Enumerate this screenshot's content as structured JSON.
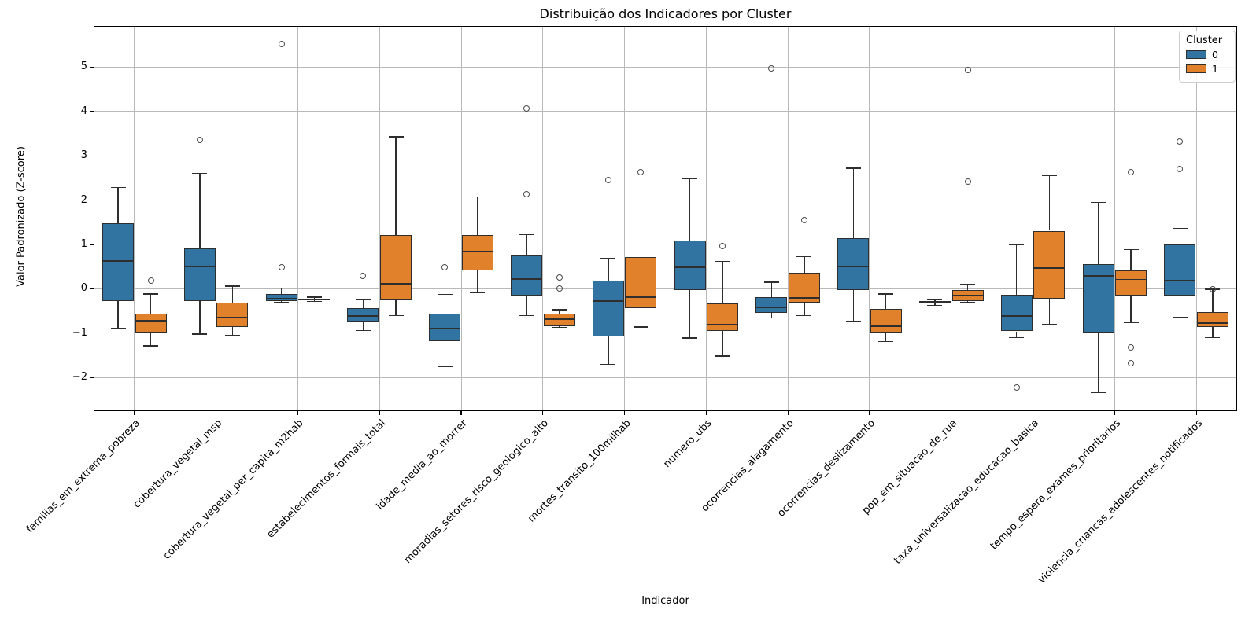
{
  "chart_data": {
    "type": "boxplot",
    "title": "Distribuição dos Indicadores por Cluster",
    "xlabel": "Indicador",
    "ylabel": "Valor Padronizado (Z-score)",
    "ylim": [
      -2.76,
      5.93
    ],
    "yticks": [
      -2,
      -1,
      0,
      1,
      2,
      3,
      4,
      5
    ],
    "grid": true,
    "legend": {
      "title": "Cluster",
      "position": "upper right",
      "entries": [
        {
          "label": "0",
          "color": "#3274a1"
        },
        {
          "label": "1",
          "color": "#e1812c"
        }
      ]
    },
    "categories": [
      "familias_em_extrema_pobreza",
      "cobertura_vegetal_msp",
      "cobertura_vegetal_per_capita_m2hab",
      "estabelecimentos_formais_total",
      "idade_media_ao_morrer",
      "moradias_setores_risco_geologico_alto",
      "mortes_transito_100milhab",
      "numero_ubs",
      "ocorrencias_alagamento",
      "ocorrencias_deslizamento",
      "pop_em_situacao_de_rua",
      "taxa_universalizacao_educacao_basica",
      "tempo_espera_exames_prioritarios",
      "violencia_criancas_adolescentes_notificados"
    ],
    "series": [
      {
        "name": "0",
        "color": "#3274a1",
        "boxes": [
          {
            "whislo": -0.89,
            "q1": -0.28,
            "med": 0.63,
            "q3": 1.47,
            "whishi": 2.29,
            "fliers": []
          },
          {
            "whislo": -1.02,
            "q1": -0.28,
            "med": 0.51,
            "q3": 0.91,
            "whishi": 2.6,
            "fliers": [
              3.36
            ]
          },
          {
            "whislo": -0.3,
            "q1": -0.27,
            "med": -0.22,
            "q3": -0.12,
            "whishi": 0.02,
            "fliers": [
              0.49,
              5.53
            ]
          },
          {
            "whislo": -0.94,
            "q1": -0.74,
            "med": -0.61,
            "q3": -0.44,
            "whishi": -0.24,
            "fliers": [
              0.29
            ]
          },
          {
            "whislo": -1.76,
            "q1": -1.19,
            "med": -0.89,
            "q3": -0.56,
            "whishi": -0.13,
            "fliers": [
              0.49
            ]
          },
          {
            "whislo": -0.61,
            "q1": -0.15,
            "med": 0.22,
            "q3": 0.75,
            "whishi": 1.22,
            "fliers": [
              2.13,
              4.06
            ]
          },
          {
            "whislo": -1.7,
            "q1": -1.08,
            "med": -0.28,
            "q3": 0.18,
            "whishi": 0.69,
            "fliers": [
              2.45
            ]
          },
          {
            "whislo": -1.11,
            "q1": -0.03,
            "med": 0.48,
            "q3": 1.09,
            "whishi": 2.48,
            "fliers": []
          },
          {
            "whislo": -0.66,
            "q1": -0.55,
            "med": -0.42,
            "q3": -0.19,
            "whishi": 0.15,
            "fliers": [
              4.97
            ]
          },
          {
            "whislo": -0.74,
            "q1": -0.03,
            "med": 0.5,
            "q3": 1.14,
            "whishi": 2.72,
            "fliers": []
          },
          {
            "whislo": -0.37,
            "q1": -0.33,
            "med": -0.31,
            "q3": -0.28,
            "whishi": -0.25,
            "fliers": []
          },
          {
            "whislo": -1.1,
            "q1": -0.96,
            "med": -0.62,
            "q3": -0.13,
            "whishi": 0.99,
            "fliers": [
              -2.22
            ]
          },
          {
            "whislo": -2.34,
            "q1": -0.98,
            "med": 0.29,
            "q3": 0.55,
            "whishi": 1.95,
            "fliers": []
          },
          {
            "whislo": -0.65,
            "q1": -0.15,
            "med": 0.18,
            "q3": 1.0,
            "whishi": 1.36,
            "fliers": [
              2.7,
              3.32
            ]
          }
        ]
      },
      {
        "name": "1",
        "color": "#e1812c",
        "boxes": [
          {
            "whislo": -1.29,
            "q1": -0.99,
            "med": -0.72,
            "q3": -0.56,
            "whishi": -0.12,
            "fliers": [
              0.19
            ]
          },
          {
            "whislo": -1.06,
            "q1": -0.87,
            "med": -0.65,
            "q3": -0.32,
            "whishi": 0.06,
            "fliers": []
          },
          {
            "whislo": -0.29,
            "q1": -0.26,
            "med": -0.24,
            "q3": -0.22,
            "whishi": -0.19,
            "fliers": []
          },
          {
            "whislo": -0.61,
            "q1": -0.26,
            "med": 0.12,
            "q3": 1.22,
            "whishi": 3.43,
            "fliers": []
          },
          {
            "whislo": -0.09,
            "q1": 0.42,
            "med": 0.84,
            "q3": 1.21,
            "whishi": 2.07,
            "fliers": []
          },
          {
            "whislo": -0.87,
            "q1": -0.84,
            "med": -0.68,
            "q3": -0.56,
            "whishi": -0.47,
            "fliers": [
              0.0,
              0.25
            ]
          },
          {
            "whislo": -0.86,
            "q1": -0.43,
            "med": -0.19,
            "q3": 0.71,
            "whishi": 1.75,
            "fliers": [
              2.64
            ]
          },
          {
            "whislo": -1.52,
            "q1": -0.95,
            "med": -0.8,
            "q3": -0.33,
            "whishi": 0.62,
            "fliers": [
              0.97
            ]
          },
          {
            "whislo": -0.6,
            "q1": -0.31,
            "med": -0.2,
            "q3": 0.36,
            "whishi": 0.72,
            "fliers": [
              1.55
            ]
          },
          {
            "whislo": -1.19,
            "q1": -0.98,
            "med": -0.85,
            "q3": -0.46,
            "whishi": -0.12,
            "fliers": []
          },
          {
            "whislo": -0.31,
            "q1": -0.28,
            "med": -0.16,
            "q3": -0.03,
            "whishi": 0.1,
            "fliers": [
              2.41,
              4.93
            ]
          },
          {
            "whislo": -0.81,
            "q1": -0.22,
            "med": 0.47,
            "q3": 1.31,
            "whishi": 2.56,
            "fliers": []
          },
          {
            "whislo": -0.77,
            "q1": -0.15,
            "med": 0.21,
            "q3": 0.42,
            "whishi": 0.88,
            "fliers": [
              2.63,
              -1.32,
              -1.67
            ]
          },
          {
            "whislo": -1.1,
            "q1": -0.87,
            "med": -0.77,
            "q3": -0.52,
            "whishi": -0.01,
            "fliers": [
              -0.01
            ]
          }
        ]
      }
    ],
    "style": {
      "box_edge_color": "#2e2e2e",
      "grid_color": "#b9b9b9",
      "flier_edge_color": "#4a4a4a",
      "background": "#ffffff"
    }
  }
}
